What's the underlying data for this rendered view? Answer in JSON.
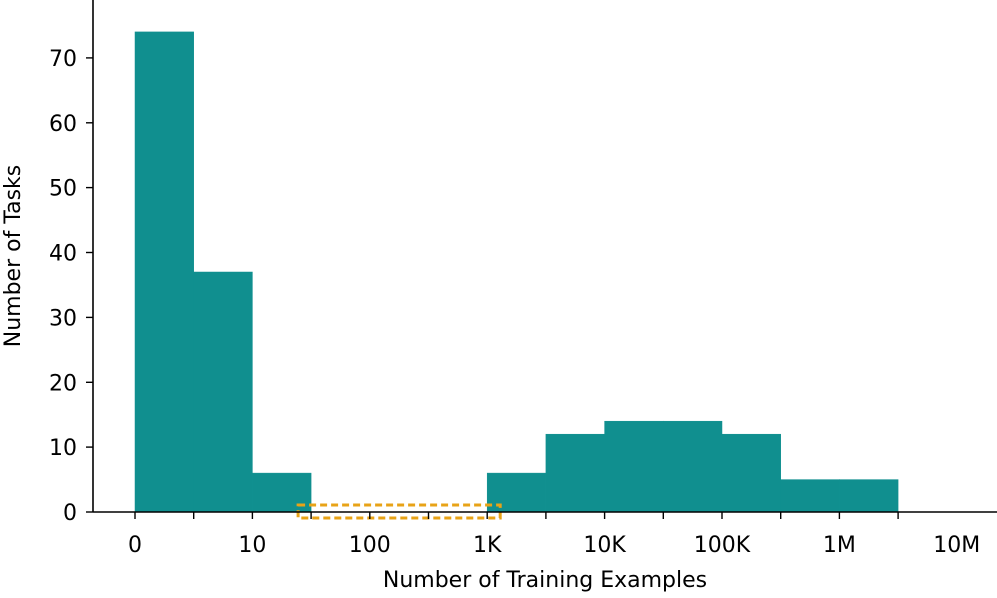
{
  "chart_data": {
    "type": "bar",
    "xlabel": "Number of Training Examples",
    "ylabel": "Number of Tasks",
    "x_ticks": [
      "0",
      "10",
      "100",
      "1K",
      "10K",
      "100K",
      "1M",
      "10M"
    ],
    "y_ticks": [
      0,
      10,
      20,
      30,
      40,
      50,
      60,
      70
    ],
    "ylim": [
      0,
      78
    ],
    "bins": [
      {
        "from": "0",
        "to": "~3",
        "value": 74
      },
      {
        "from": "~3",
        "to": "10",
        "value": 37
      },
      {
        "from": "10",
        "to": "~30",
        "value": 6
      },
      {
        "from": "~30",
        "to": "100",
        "value": 0
      },
      {
        "from": "100",
        "to": "~300",
        "value": 0
      },
      {
        "from": "~300",
        "to": "1K",
        "value": 0
      },
      {
        "from": "1K",
        "to": "~3K",
        "value": 6
      },
      {
        "from": "~3K",
        "to": "10K",
        "value": 12
      },
      {
        "from": "10K",
        "to": "~30K",
        "value": 14
      },
      {
        "from": "~30K",
        "to": "100K",
        "value": 14
      },
      {
        "from": "100K",
        "to": "~300K",
        "value": 12
      },
      {
        "from": "~300K",
        "to": "1M",
        "value": 5
      },
      {
        "from": "1M",
        "to": "~3M",
        "value": 5
      }
    ],
    "bar_color": "#108f8f",
    "highlight": {
      "from_bin": 3,
      "to_bin": 5,
      "color": "#e8a317",
      "style": "dashed"
    },
    "grid": false,
    "legend": "none"
  }
}
